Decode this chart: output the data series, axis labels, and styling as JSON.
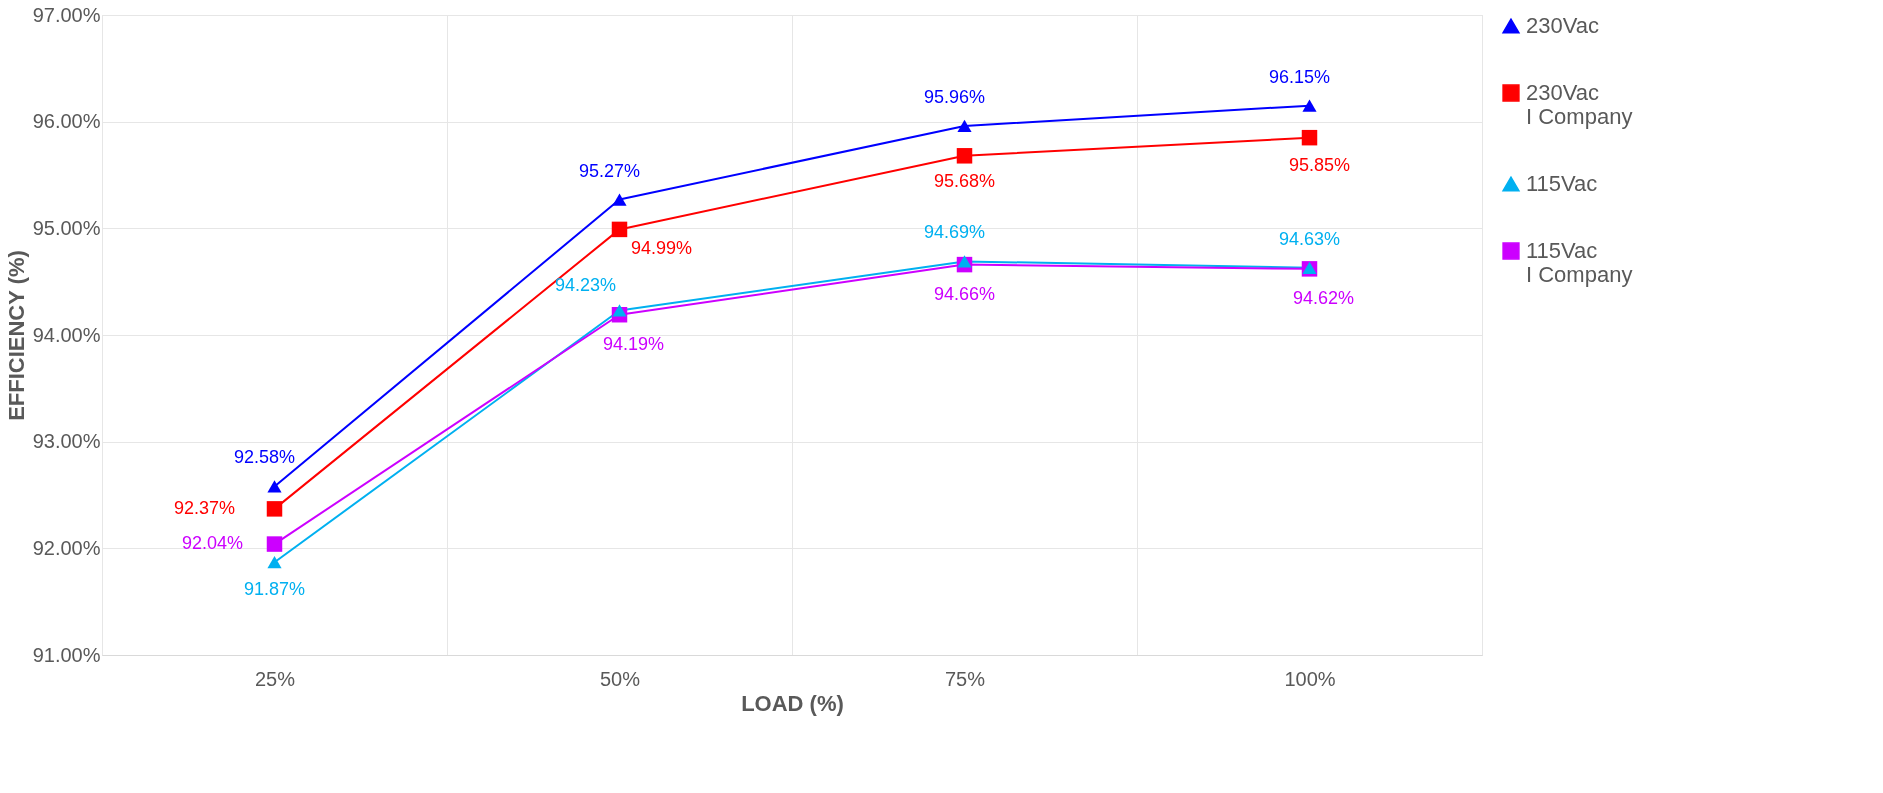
{
  "chart_data": {
    "type": "line",
    "xlabel": "LOAD (%)",
    "ylabel": "EFFICIENCY (%)",
    "categories": [
      "25%",
      "50%",
      "75%",
      "100%"
    ],
    "ylim": [
      91,
      97
    ],
    "yticks": [
      {
        "value": 91,
        "label": "91.00%"
      },
      {
        "value": 92,
        "label": "92.00%"
      },
      {
        "value": 93,
        "label": "93.00%"
      },
      {
        "value": 94,
        "label": "94.00%"
      },
      {
        "value": 95,
        "label": "95.00%"
      },
      {
        "value": 96,
        "label": "96.00%"
      },
      {
        "value": 97,
        "label": "97.00%"
      }
    ],
    "grid": true,
    "legend": "right",
    "series": [
      {
        "name": "230Vac",
        "color": "#0000ff",
        "marker": "triangle",
        "values": [
          92.58,
          95.27,
          95.96,
          96.15
        ],
        "value_labels": [
          "92.58%",
          "95.27%",
          "95.96%",
          "96.15%"
        ]
      },
      {
        "name": "230Vac\nI Company",
        "color": "#ff0000",
        "marker": "square",
        "values": [
          92.37,
          94.99,
          95.68,
          95.85
        ],
        "value_labels": [
          "92.37%",
          "94.99%",
          "95.68%",
          "95.85%"
        ]
      },
      {
        "name": "115Vac",
        "color": "#00b0f0",
        "marker": "triangle",
        "values": [
          91.87,
          94.23,
          94.69,
          94.63
        ],
        "value_labels": [
          "91.87%",
          "94.23%",
          "94.69%",
          "94.63%"
        ]
      },
      {
        "name": "115Vac\nI Company",
        "color": "#cc00ff",
        "marker": "square",
        "values": [
          92.04,
          94.19,
          94.66,
          94.62
        ],
        "value_labels": [
          "92.04%",
          "94.19%",
          "94.66%",
          "94.62%"
        ]
      }
    ]
  }
}
